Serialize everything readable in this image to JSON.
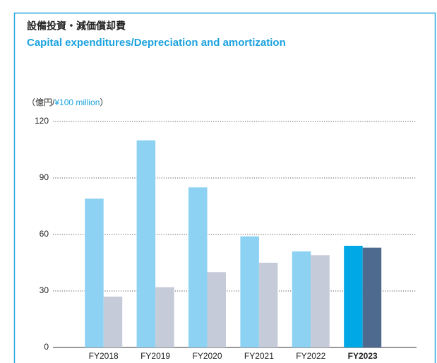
{
  "chart_data": {
    "type": "bar",
    "title": "設備投資・減価償却費",
    "subtitle": "Capital expenditures/Depreciation and amortization",
    "ylabel_parts": [
      "（億円/",
      "¥100 million",
      "）"
    ],
    "categories": [
      "FY2018",
      "FY2019",
      "FY2020",
      "FY2021",
      "FY2022",
      "FY2023"
    ],
    "series": [
      {
        "color": "#8dd1f3",
        "highlight_color": "#00a8e6",
        "values": [
          79,
          110,
          85,
          59,
          51,
          54
        ]
      },
      {
        "color": "#c6cbd9",
        "highlight_color": "#4f6a8f",
        "values": [
          27,
          32,
          40,
          45,
          49,
          53
        ]
      }
    ],
    "highlight_index": 5,
    "ylim": [
      0,
      120
    ],
    "yticks": [
      0,
      30,
      60,
      90,
      120
    ],
    "grid": true
  }
}
